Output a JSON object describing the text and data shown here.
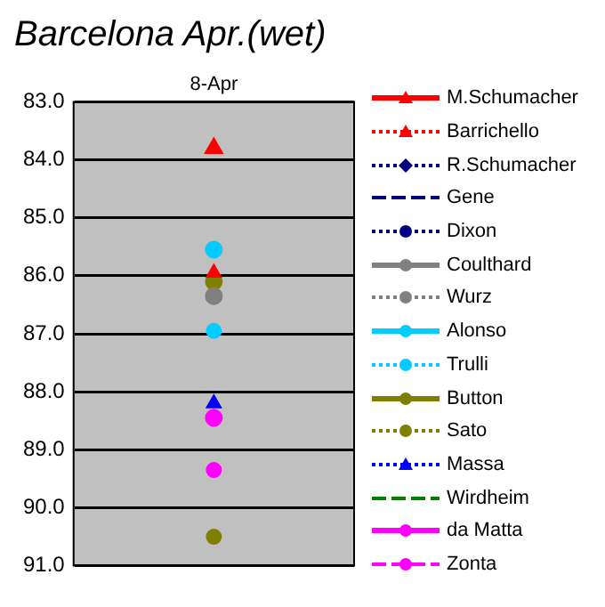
{
  "chart_data": {
    "type": "line",
    "title": "Barcelona Apr.(wet)",
    "categories": [
      "8-Apr"
    ],
    "ylim": [
      91,
      83
    ],
    "yticks": [
      {
        "value": 83,
        "label": "83.0"
      },
      {
        "value": 84,
        "label": "84.0"
      },
      {
        "value": 85,
        "label": "85.0"
      },
      {
        "value": 86,
        "label": "86.0"
      },
      {
        "value": 87,
        "label": "87.0"
      },
      {
        "value": 88,
        "label": "88.0"
      },
      {
        "value": 89,
        "label": "89.0"
      },
      {
        "value": 90,
        "label": "90.0"
      },
      {
        "value": 91,
        "label": "91.0"
      }
    ],
    "grid": "y",
    "legend": "right",
    "series": [
      {
        "name": "M.Schumacher",
        "color": "#ff0000",
        "values": [
          83.8
        ],
        "marker": "triangle",
        "line_style": "solid"
      },
      {
        "name": "Barrichello",
        "color": "#ff0000",
        "values": [
          85.95
        ],
        "marker": "triangle",
        "line_style": "dotted"
      },
      {
        "name": "R.Schumacher",
        "color": "#000080",
        "values": [
          null
        ],
        "marker": "diamond",
        "line_style": "dotted"
      },
      {
        "name": "Gene",
        "color": "#000080",
        "values": [
          null
        ],
        "marker": "none",
        "line_style": "dashed"
      },
      {
        "name": "Dixon",
        "color": "#000080",
        "values": [
          null
        ],
        "marker": "circle",
        "line_style": "dotted"
      },
      {
        "name": "Coulthard",
        "color": "#808080",
        "values": [
          86.35
        ],
        "marker": "circle",
        "line_style": "solid"
      },
      {
        "name": "Wurz",
        "color": "#808080",
        "values": [
          null
        ],
        "marker": "circle",
        "line_style": "dotted"
      },
      {
        "name": "Alonso",
        "color": "#00ccff",
        "values": [
          85.55
        ],
        "marker": "circle",
        "line_style": "solid"
      },
      {
        "name": "Trulli",
        "color": "#00ccff",
        "values": [
          86.95
        ],
        "marker": "circle",
        "line_style": "dotted"
      },
      {
        "name": "Button",
        "color": "#808000",
        "values": [
          86.1
        ],
        "marker": "circle",
        "line_style": "solid"
      },
      {
        "name": "Sato",
        "color": "#808000",
        "values": [
          90.5
        ],
        "marker": "circle",
        "line_style": "dotted"
      },
      {
        "name": "Massa",
        "color": "#0000ff",
        "values": [
          88.2
        ],
        "marker": "triangle",
        "line_style": "dotted"
      },
      {
        "name": "Wirdheim",
        "color": "#008000",
        "values": [
          null
        ],
        "marker": "none",
        "line_style": "dashed"
      },
      {
        "name": "da Matta",
        "color": "#ff00ff",
        "values": [
          88.45
        ],
        "marker": "circle",
        "line_style": "solid"
      },
      {
        "name": "Zonta",
        "color": "#ff00ff",
        "values": [
          89.35
        ],
        "marker": "circle",
        "line_style": "dashed"
      }
    ]
  }
}
